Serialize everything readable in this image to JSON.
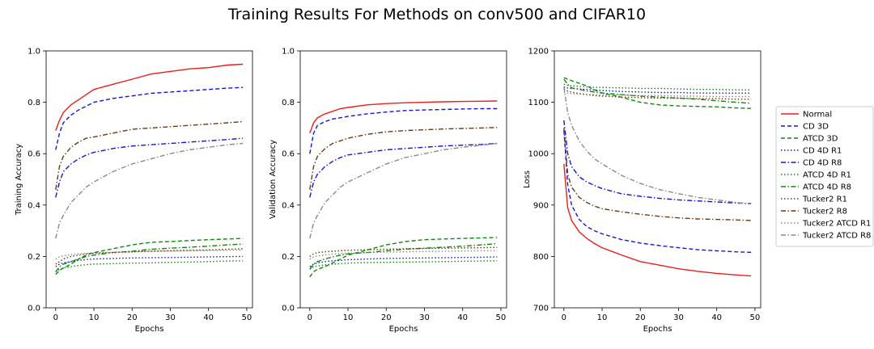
{
  "figure": {
    "title": "Training Results For Methods on conv500 and CIFAR10"
  },
  "legend": {
    "placement": "right",
    "entries": [
      {
        "name": "Normal",
        "color": "#ee1c1c",
        "dash": "solid"
      },
      {
        "name": "CD 3D",
        "color": "#1414e0",
        "dash": "dashed"
      },
      {
        "name": "ATCD 3D",
        "color": "#0d8a0d",
        "dash": "dashed"
      },
      {
        "name": "CD 4D R1",
        "color": "#1414e0",
        "dash": "dotted"
      },
      {
        "name": "CD 4D R8",
        "color": "#1414e0",
        "dash": "dashdot"
      },
      {
        "name": "ATCD 4D R1",
        "color": "#0d8a0d",
        "dash": "dotted"
      },
      {
        "name": "ATCD 4D R8",
        "color": "#0d8a0d",
        "dash": "dashdot"
      },
      {
        "name": "Tucker2 R1",
        "color": "#6b3a10",
        "dash": "dotted"
      },
      {
        "name": "Tucker2 R8",
        "color": "#6b3a10",
        "dash": "dashdot"
      },
      {
        "name": "Tucker2 ATCD R1",
        "color": "#8a8a8a",
        "dash": "dotted"
      },
      {
        "name": "Tucker2 ATCD R8",
        "color": "#8a8a8a",
        "dash": "dashdot"
      }
    ]
  },
  "chart_data": [
    {
      "type": "line",
      "title": "",
      "xlabel": "Epochs",
      "ylabel": "Training Accuracy",
      "xlim": [
        -2.5,
        51.5
      ],
      "ylim": [
        0.0,
        1.0
      ],
      "xticks": [
        "0",
        "10",
        "20",
        "30",
        "40",
        "50"
      ],
      "yticks": [
        "0.0",
        "0.2",
        "0.4",
        "0.6",
        "0.8",
        "1.0"
      ],
      "x": [
        0,
        1,
        2,
        4,
        6,
        8,
        10,
        15,
        20,
        25,
        30,
        35,
        40,
        45,
        49
      ],
      "series": [
        {
          "name": "Normal",
          "values": [
            0.69,
            0.73,
            0.76,
            0.79,
            0.81,
            0.83,
            0.85,
            0.87,
            0.89,
            0.91,
            0.92,
            0.93,
            0.935,
            0.945,
            0.948
          ]
        },
        {
          "name": "CD 3D",
          "values": [
            0.615,
            0.68,
            0.72,
            0.75,
            0.77,
            0.785,
            0.8,
            0.815,
            0.825,
            0.835,
            0.84,
            0.845,
            0.85,
            0.855,
            0.858
          ]
        },
        {
          "name": "ATCD 3D",
          "values": [
            0.13,
            0.145,
            0.155,
            0.17,
            0.19,
            0.205,
            0.215,
            0.23,
            0.245,
            0.255,
            0.258,
            0.262,
            0.265,
            0.268,
            0.27
          ]
        },
        {
          "name": "CD 4D R1",
          "values": [
            0.16,
            0.17,
            0.175,
            0.18,
            0.185,
            0.188,
            0.19,
            0.192,
            0.194,
            0.195,
            0.196,
            0.197,
            0.198,
            0.199,
            0.2
          ]
        },
        {
          "name": "CD 4D R8",
          "values": [
            0.43,
            0.49,
            0.53,
            0.56,
            0.58,
            0.595,
            0.605,
            0.62,
            0.63,
            0.635,
            0.64,
            0.645,
            0.65,
            0.655,
            0.66
          ]
        },
        {
          "name": "ATCD 4D R1",
          "values": [
            0.14,
            0.15,
            0.155,
            0.16,
            0.165,
            0.168,
            0.17,
            0.172,
            0.174,
            0.175,
            0.177,
            0.178,
            0.18,
            0.182,
            0.183
          ]
        },
        {
          "name": "ATCD 4D R8",
          "values": [
            0.14,
            0.16,
            0.17,
            0.18,
            0.19,
            0.2,
            0.205,
            0.215,
            0.22,
            0.228,
            0.232,
            0.236,
            0.24,
            0.245,
            0.248
          ]
        },
        {
          "name": "Tucker2 R1",
          "values": [
            0.17,
            0.18,
            0.19,
            0.2,
            0.205,
            0.21,
            0.212,
            0.215,
            0.218,
            0.22,
            0.222,
            0.224,
            0.225,
            0.228,
            0.23
          ]
        },
        {
          "name": "Tucker2 R8",
          "values": [
            0.46,
            0.55,
            0.59,
            0.625,
            0.645,
            0.66,
            0.665,
            0.68,
            0.695,
            0.7,
            0.705,
            0.71,
            0.715,
            0.72,
            0.725
          ]
        },
        {
          "name": "Tucker2 ATCD R1",
          "values": [
            0.19,
            0.198,
            0.203,
            0.207,
            0.21,
            0.212,
            0.214,
            0.216,
            0.218,
            0.22,
            0.221,
            0.222,
            0.223,
            0.224,
            0.225
          ]
        },
        {
          "name": "Tucker2 ATCD R8",
          "values": [
            0.27,
            0.33,
            0.36,
            0.41,
            0.44,
            0.47,
            0.49,
            0.53,
            0.56,
            0.58,
            0.6,
            0.615,
            0.625,
            0.635,
            0.64
          ]
        }
      ]
    },
    {
      "type": "line",
      "title": "",
      "xlabel": "Epochs",
      "ylabel": "Validation  Accuracy",
      "xlim": [
        -2.5,
        51.5
      ],
      "ylim": [
        0.0,
        1.0
      ],
      "xticks": [
        "0",
        "10",
        "20",
        "30",
        "40",
        "50"
      ],
      "yticks": [
        "0.0",
        "0.2",
        "0.4",
        "0.6",
        "0.8",
        "1.0"
      ],
      "x": [
        0,
        1,
        2,
        4,
        6,
        8,
        10,
        15,
        20,
        25,
        30,
        35,
        40,
        45,
        49
      ],
      "series": [
        {
          "name": "Normal",
          "values": [
            0.68,
            0.72,
            0.74,
            0.755,
            0.765,
            0.775,
            0.78,
            0.79,
            0.795,
            0.798,
            0.8,
            0.802,
            0.803,
            0.804,
            0.805
          ]
        },
        {
          "name": "CD 3D",
          "values": [
            0.6,
            0.68,
            0.71,
            0.725,
            0.735,
            0.74,
            0.745,
            0.755,
            0.762,
            0.768,
            0.77,
            0.772,
            0.774,
            0.775,
            0.775
          ]
        },
        {
          "name": "ATCD 3D",
          "values": [
            0.12,
            0.14,
            0.15,
            0.16,
            0.175,
            0.19,
            0.205,
            0.225,
            0.245,
            0.258,
            0.265,
            0.268,
            0.27,
            0.272,
            0.274
          ]
        },
        {
          "name": "CD 4D R1",
          "values": [
            0.16,
            0.17,
            0.175,
            0.18,
            0.183,
            0.185,
            0.187,
            0.19,
            0.192,
            0.193,
            0.194,
            0.195,
            0.196,
            0.197,
            0.198
          ]
        },
        {
          "name": "CD 4D R8",
          "values": [
            0.43,
            0.49,
            0.52,
            0.55,
            0.57,
            0.585,
            0.595,
            0.605,
            0.615,
            0.62,
            0.625,
            0.63,
            0.633,
            0.636,
            0.64
          ]
        },
        {
          "name": "ATCD 4D R1",
          "values": [
            0.15,
            0.16,
            0.163,
            0.167,
            0.17,
            0.172,
            0.174,
            0.176,
            0.177,
            0.178,
            0.179,
            0.18,
            0.181,
            0.182,
            0.183
          ]
        },
        {
          "name": "ATCD 4D R8",
          "values": [
            0.15,
            0.17,
            0.18,
            0.19,
            0.198,
            0.205,
            0.21,
            0.215,
            0.222,
            0.228,
            0.232,
            0.236,
            0.24,
            0.245,
            0.25
          ]
        },
        {
          "name": "Tucker2 R1",
          "values": [
            0.2,
            0.21,
            0.215,
            0.218,
            0.22,
            0.222,
            0.224,
            0.226,
            0.228,
            0.23,
            0.231,
            0.232,
            0.233,
            0.234,
            0.235
          ]
        },
        {
          "name": "Tucker2 R8",
          "values": [
            0.46,
            0.55,
            0.59,
            0.62,
            0.64,
            0.65,
            0.66,
            0.675,
            0.685,
            0.69,
            0.693,
            0.696,
            0.698,
            0.7,
            0.702
          ]
        },
        {
          "name": "Tucker2 ATCD R1",
          "values": [
            0.19,
            0.198,
            0.202,
            0.206,
            0.209,
            0.211,
            0.213,
            0.215,
            0.217,
            0.218,
            0.219,
            0.22,
            0.221,
            0.222,
            0.222
          ]
        },
        {
          "name": "Tucker2 ATCD R8",
          "values": [
            0.27,
            0.33,
            0.36,
            0.41,
            0.44,
            0.47,
            0.49,
            0.525,
            0.56,
            0.585,
            0.6,
            0.615,
            0.625,
            0.633,
            0.64
          ]
        }
      ]
    },
    {
      "type": "line",
      "title": "",
      "xlabel": "Epochs",
      "ylabel": "Loss",
      "xlim": [
        -2.5,
        51.5
      ],
      "ylim": [
        700,
        1200
      ],
      "xticks": [
        "0",
        "10",
        "20",
        "30",
        "40",
        "50"
      ],
      "yticks": [
        "700",
        "800",
        "900",
        "1000",
        "1100",
        "1200"
      ],
      "x": [
        0,
        1,
        2,
        4,
        6,
        8,
        10,
        15,
        20,
        25,
        30,
        35,
        40,
        45,
        49
      ],
      "series": [
        {
          "name": "Normal",
          "values": [
            980,
            895,
            870,
            848,
            835,
            825,
            817,
            803,
            790,
            783,
            776,
            771,
            767,
            764,
            762
          ]
        },
        {
          "name": "CD 3D",
          "values": [
            1045,
            940,
            900,
            872,
            858,
            850,
            844,
            833,
            826,
            821,
            817,
            813,
            811,
            809,
            808
          ]
        },
        {
          "name": "ATCD 3D",
          "values": [
            1148,
            1145,
            1142,
            1137,
            1132,
            1124,
            1118,
            1110,
            1100,
            1095,
            1093,
            1092,
            1091,
            1089,
            1088
          ]
        },
        {
          "name": "CD 4D R1",
          "values": [
            1130,
            1128,
            1127,
            1126,
            1125,
            1124,
            1123,
            1121,
            1120,
            1119,
            1119,
            1118,
            1118,
            1118,
            1118
          ]
        },
        {
          "name": "CD 4D R8",
          "values": [
            1065,
            1000,
            975,
            955,
            945,
            938,
            932,
            922,
            917,
            913,
            910,
            908,
            906,
            904,
            903
          ]
        },
        {
          "name": "ATCD 4D R1",
          "values": [
            1135,
            1133,
            1132,
            1131,
            1130,
            1129,
            1129,
            1128,
            1127,
            1127,
            1126,
            1125,
            1125,
            1124,
            1124
          ]
        },
        {
          "name": "ATCD 4D R8",
          "values": [
            1145,
            1135,
            1128,
            1125,
            1122,
            1120,
            1118,
            1115,
            1112,
            1110,
            1108,
            1106,
            1103,
            1100,
            1098
          ]
        },
        {
          "name": "Tucker2 R1",
          "values": [
            1125,
            1122,
            1120,
            1117,
            1115,
            1113,
            1112,
            1110,
            1109,
            1108,
            1108,
            1107,
            1107,
            1106,
            1106
          ]
        },
        {
          "name": "Tucker2 R8",
          "values": [
            1050,
            960,
            935,
            915,
            905,
            898,
            893,
            887,
            882,
            878,
            875,
            873,
            872,
            871,
            870
          ]
        },
        {
          "name": "Tucker2 ATCD R1",
          "values": [
            1120,
            1118,
            1117,
            1116,
            1115,
            1115,
            1114,
            1114,
            1113,
            1113,
            1112,
            1112,
            1111,
            1111,
            1111
          ]
        },
        {
          "name": "Tucker2 ATCD R8",
          "values": [
            1130,
            1080,
            1055,
            1025,
            1005,
            990,
            980,
            958,
            942,
            930,
            922,
            915,
            910,
            905,
            902
          ]
        }
      ]
    }
  ]
}
